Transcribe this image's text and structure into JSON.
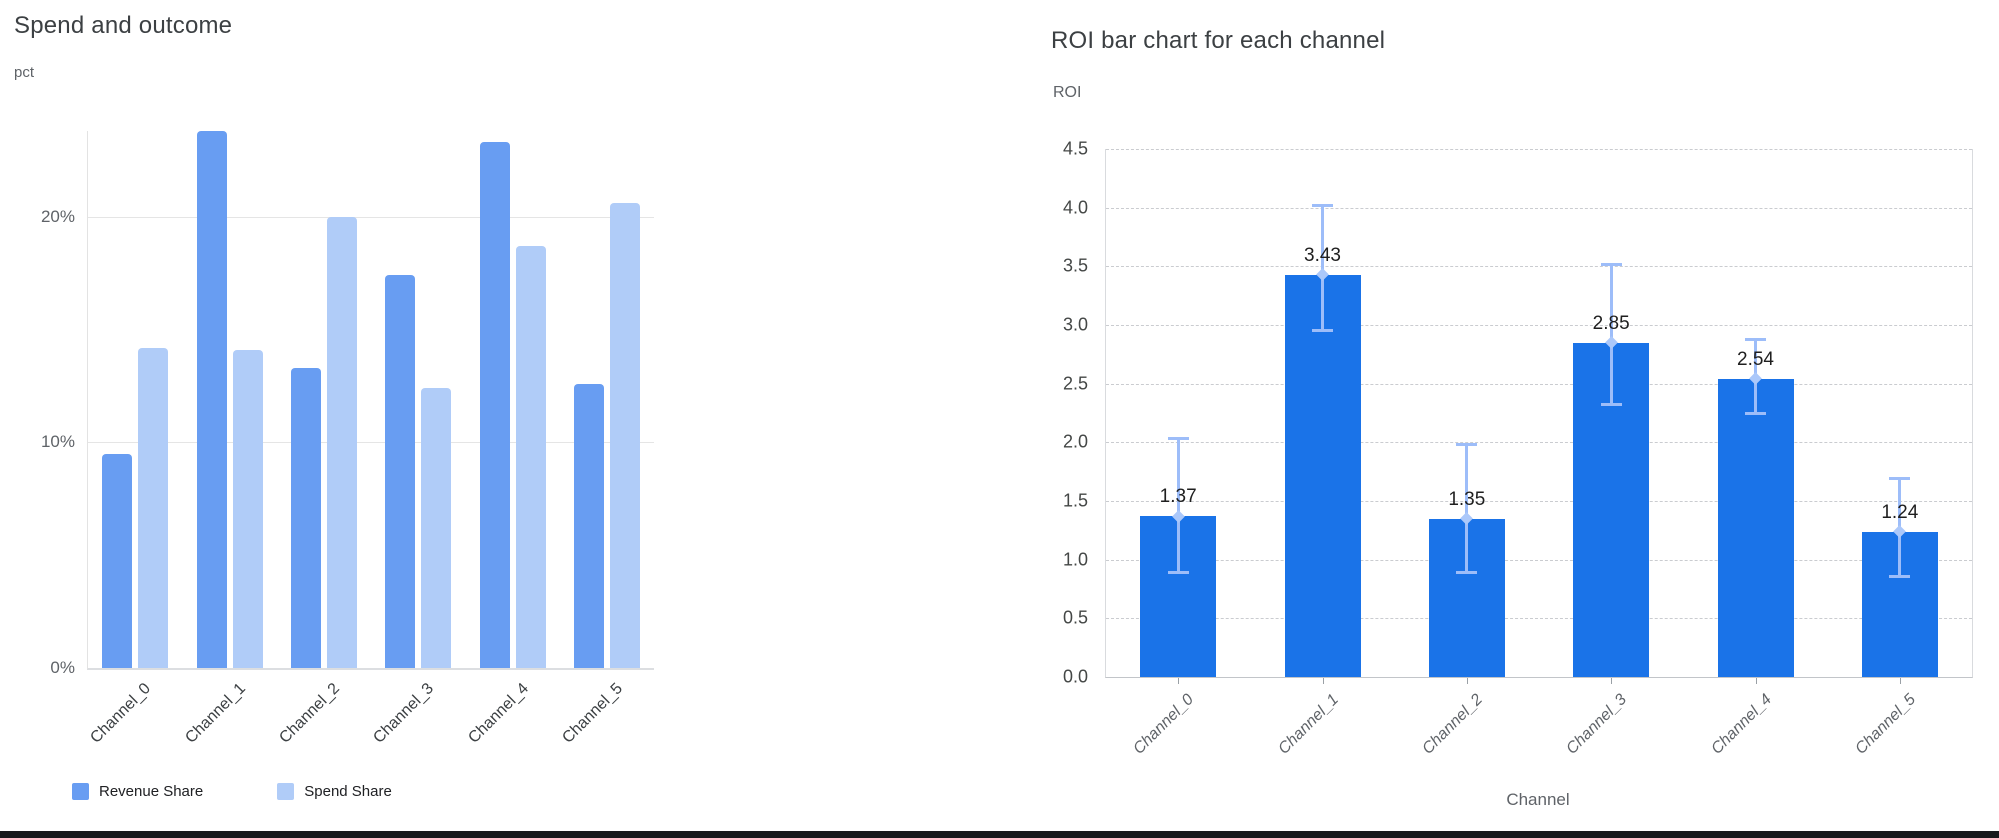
{
  "page": {
    "bottom_bar_color": "#17191c"
  },
  "chart_data": [
    {
      "type": "bar",
      "title": "Spend and outcome",
      "ylabel": "pct",
      "xlabel": "",
      "categories": [
        "Channel_0",
        "Channel_1",
        "Channel_2",
        "Channel_3",
        "Channel_4",
        "Channel_5"
      ],
      "series": [
        {
          "name": "Revenue Share",
          "color": "#689df2",
          "values": [
            9.5,
            23.8,
            13.3,
            17.4,
            23.3,
            12.6
          ]
        },
        {
          "name": "Spend Share",
          "color": "#b0ccf8",
          "values": [
            14.2,
            14.1,
            20.0,
            12.4,
            18.7,
            20.6
          ]
        }
      ],
      "value_unit": "percent",
      "ylim": [
        0,
        23.8
      ],
      "yticks": [
        {
          "v": 0,
          "label": "0%"
        },
        {
          "v": 10,
          "label": "10%"
        },
        {
          "v": 20,
          "label": "20%"
        }
      ],
      "grid": "solid",
      "legend_position": "bottom-left"
    },
    {
      "type": "bar",
      "title": "ROI bar chart for each channel",
      "ylabel": "ROI",
      "xlabel": "Channel",
      "categories": [
        "Channel_0",
        "Channel_1",
        "Channel_2",
        "Channel_3",
        "Channel_4",
        "Channel_5"
      ],
      "values": [
        1.37,
        3.43,
        1.35,
        2.85,
        2.54,
        1.24
      ],
      "data_labels": [
        "1.37",
        "3.43",
        "1.35",
        "2.85",
        "2.54",
        "1.24"
      ],
      "error_low": [
        0.89,
        2.95,
        0.89,
        2.32,
        2.24,
        0.85
      ],
      "error_high": [
        2.04,
        4.02,
        1.99,
        3.52,
        2.88,
        1.7
      ],
      "bar_color": "#1a73e8",
      "error_color": "#9dbdf9",
      "marker_color": "#abc8fa",
      "ylim": [
        0,
        4.5
      ],
      "yticks": [
        {
          "v": 0.0,
          "label": "0.0"
        },
        {
          "v": 0.5,
          "label": "0.5"
        },
        {
          "v": 1.0,
          "label": "1.0"
        },
        {
          "v": 1.5,
          "label": "1.5"
        },
        {
          "v": 2.0,
          "label": "2.0"
        },
        {
          "v": 2.5,
          "label": "2.5"
        },
        {
          "v": 3.0,
          "label": "3.0"
        },
        {
          "v": 3.5,
          "label": "3.5"
        },
        {
          "v": 4.0,
          "label": "4.0"
        },
        {
          "v": 4.5,
          "label": "4.5"
        }
      ],
      "grid": "dashed"
    }
  ]
}
